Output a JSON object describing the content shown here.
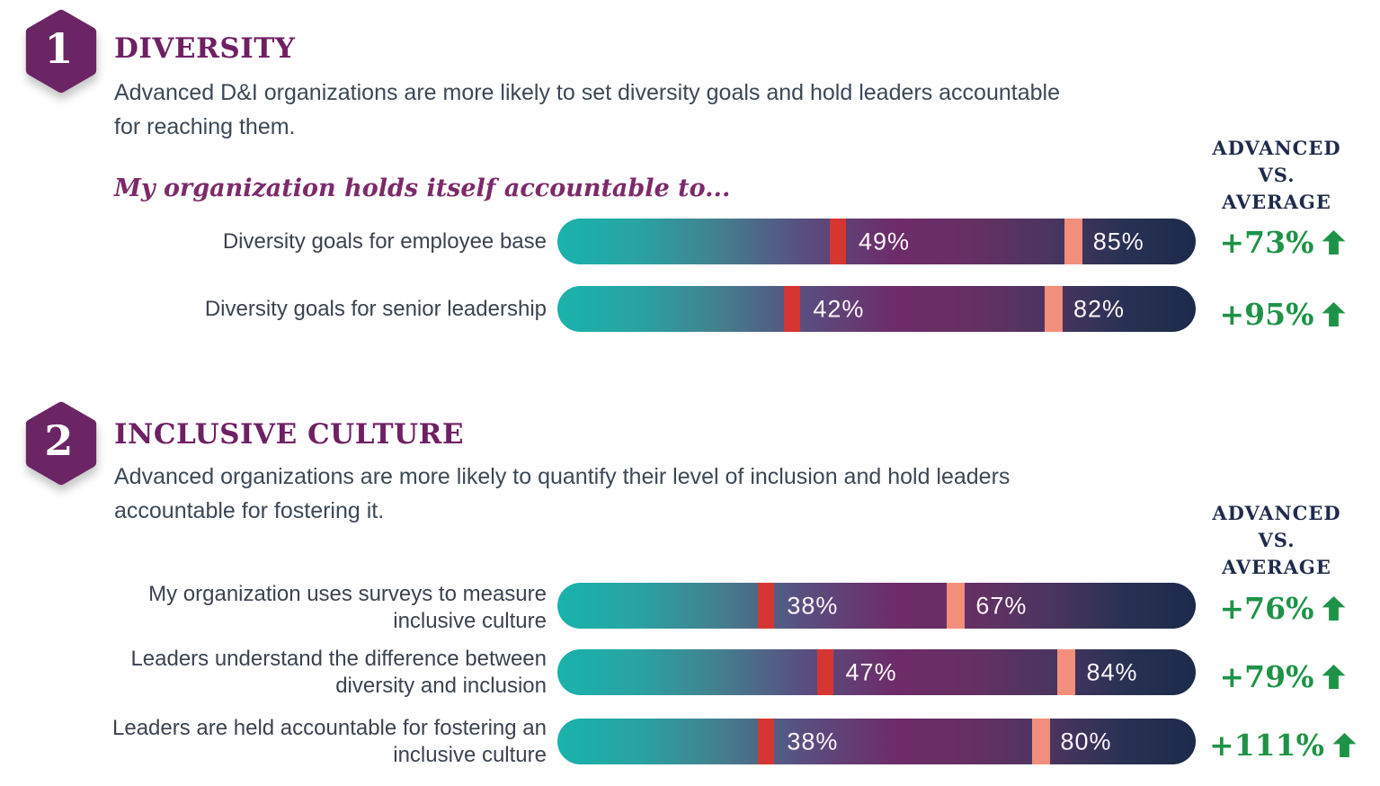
{
  "colors": {
    "badge_purple": "#6c2564",
    "title_purple": "#6f2064",
    "body_text": "#3c4856",
    "prompt_purple": "#7c2a69",
    "header_navy": "#1f2a4c",
    "delta_green": "#1e9347",
    "marker_red": "#d53631",
    "marker_salmon": "#f18f7c",
    "bar_gradient_start_teal": "#19b3ac",
    "bar_gradient_mid_purple": "#6d2c69",
    "bar_gradient_end_navy": "#1d2a4b"
  },
  "comparison_header": {
    "line1": "ADVANCED",
    "line2": "VS.",
    "line3": "AVERAGE"
  },
  "sections": [
    {
      "badge": "1",
      "title": "DIVERSITY",
      "description": "Advanced D&I organizations are more likely to set diversity goals and hold leaders accountable for reaching them.",
      "prompt": "My organization holds itself accountable to...",
      "rows": [
        {
          "label_lines": [
            "Diversity goals for employee base"
          ],
          "average_pct": 49,
          "average_label": "49%",
          "advanced_pct": 85,
          "advanced_label": "85%",
          "delta_label": "+73%"
        },
        {
          "label_lines": [
            "Diversity goals for senior leadership"
          ],
          "average_pct": 42,
          "average_label": "42%",
          "advanced_pct": 82,
          "advanced_label": "82%",
          "delta_label": "+95%"
        }
      ]
    },
    {
      "badge": "2",
      "title": "INCLUSIVE CULTURE",
      "description": "Advanced organizations are more likely to quantify their level of inclusion and hold leaders accountable for fostering it.",
      "rows": [
        {
          "label_lines": [
            "My organization uses surveys to measure",
            "inclusive culture"
          ],
          "average_pct": 38,
          "average_label": "38%",
          "advanced_pct": 67,
          "advanced_label": "67%",
          "delta_label": "+76%"
        },
        {
          "label_lines": [
            "Leaders understand the difference between",
            "diversity and inclusion"
          ],
          "average_pct": 47,
          "average_label": "47%",
          "advanced_pct": 84,
          "advanced_label": "84%",
          "delta_label": "+79%"
        },
        {
          "label_lines": [
            "Leaders are held accountable for fostering an",
            "inclusive culture"
          ],
          "average_pct": 38,
          "average_label": "38%",
          "advanced_pct": 80,
          "advanced_label": "80%",
          "delta_label": "+111%"
        }
      ]
    }
  ],
  "chart_data": [
    {
      "type": "bar",
      "orientation": "horizontal",
      "title": "Diversity — My organization holds itself accountable to...",
      "categories": [
        "Diversity goals for employee base",
        "Diversity goals for senior leadership"
      ],
      "series": [
        {
          "name": "Average organizations (red marker)",
          "values": [
            49,
            42
          ]
        },
        {
          "name": "Advanced organizations (salmon marker)",
          "values": [
            85,
            82
          ]
        }
      ],
      "annotations": {
        "advanced_vs_average": [
          "+73%",
          "+95%"
        ]
      },
      "xlim": [
        0,
        100
      ],
      "legend": "none",
      "grid": false
    },
    {
      "type": "bar",
      "orientation": "horizontal",
      "title": "Inclusive Culture",
      "categories": [
        "My organization uses surveys to measure inclusive culture",
        "Leaders understand the difference between diversity and inclusion",
        "Leaders are held accountable for fostering an inclusive culture"
      ],
      "series": [
        {
          "name": "Average organizations (red marker)",
          "values": [
            38,
            47,
            38
          ]
        },
        {
          "name": "Advanced organizations (salmon marker)",
          "values": [
            67,
            84,
            80
          ]
        }
      ],
      "annotations": {
        "advanced_vs_average": [
          "+76%",
          "+79%",
          "+111%"
        ]
      },
      "xlim": [
        0,
        100
      ],
      "legend": "none",
      "grid": false
    }
  ]
}
